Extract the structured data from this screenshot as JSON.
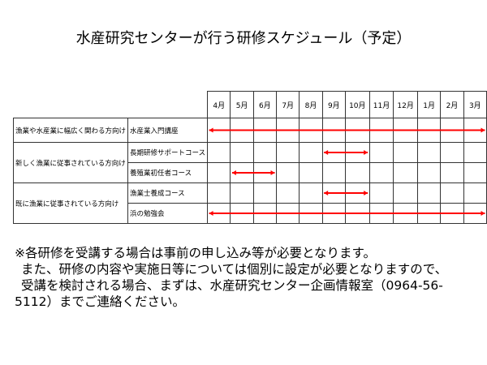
{
  "title": "水産研究センターが行う研修スケジュール（予定）",
  "months": [
    "4月",
    "5月",
    "6月",
    "7月",
    "8月",
    "9月",
    "10月",
    "11月",
    "12月",
    "1月",
    "2月",
    "3月"
  ],
  "groups": [
    {
      "label": "漁業や水産業に幅広く関わる方向け",
      "courses": [
        {
          "name": "水産業入門講座",
          "start_month": "4月",
          "end_month": "3月"
        }
      ]
    },
    {
      "label": "新しく漁業に従事されている方向け",
      "courses": [
        {
          "name": "長期研修サポートコース",
          "start_month": "9月",
          "end_month": "10月"
        },
        {
          "name": "養殖業初任者コース",
          "start_month": "5月",
          "end_month": "6月"
        }
      ]
    },
    {
      "label": "既に漁業に従事されている方向け",
      "courses": [
        {
          "name": "漁業士養成コース",
          "start_month": "9月",
          "end_month": "10月"
        },
        {
          "name": "浜の勉強会",
          "start_month": "4月",
          "end_month": "3月"
        }
      ]
    }
  ],
  "bar_color": "#ff0000",
  "note": {
    "line1": "※各研修を受講する場合は事前の申し込み等が必要となります。",
    "line2": "また、研修の内容や実施日等については個別に設定が必要となりますので、",
    "line3": "受講を検討される場合、まずは、水産研究センター企画情報室（0964-56-",
    "line4": "5112）までご連絡ください。"
  }
}
